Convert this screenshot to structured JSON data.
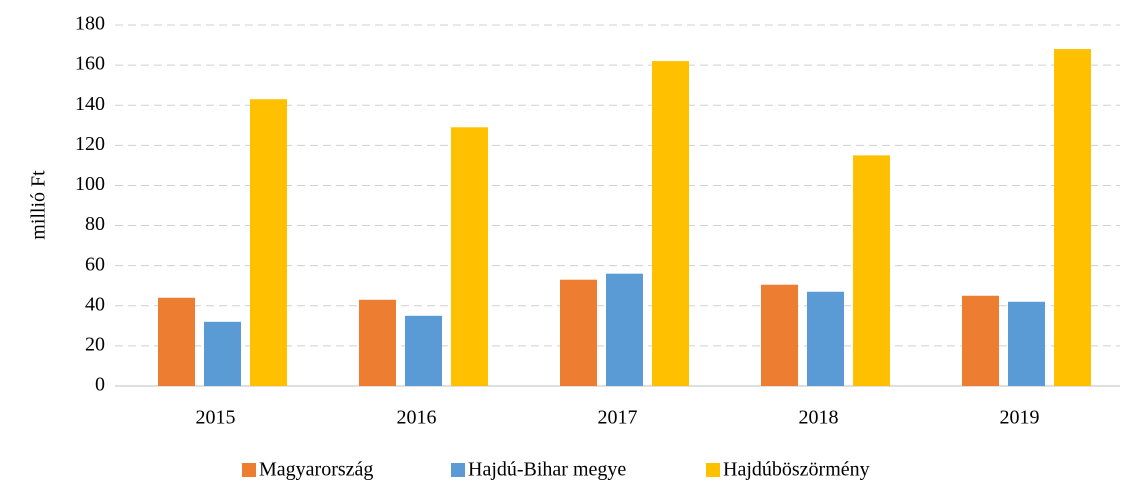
{
  "chart_data": {
    "type": "bar",
    "y_label": "millió Ft",
    "categories": [
      "2015",
      "2016",
      "2017",
      "2018",
      "2019"
    ],
    "series": [
      {
        "name": "Magyarország",
        "color": "#ed7d31",
        "values": [
          44,
          43,
          53,
          50.5,
          45
        ]
      },
      {
        "name": "Hajdú-Bihar megye",
        "color": "#5b9bd5",
        "values": [
          32,
          35,
          56,
          47,
          42
        ]
      },
      {
        "name": "Hajdúböszörmény",
        "color": "#ffc000",
        "values": [
          143,
          129,
          162,
          115,
          168
        ]
      }
    ],
    "ylim": [
      0,
      180
    ],
    "yticks": [
      0,
      20,
      40,
      60,
      80,
      100,
      120,
      140,
      160,
      180
    ],
    "grid": true,
    "legend": "bottom"
  }
}
